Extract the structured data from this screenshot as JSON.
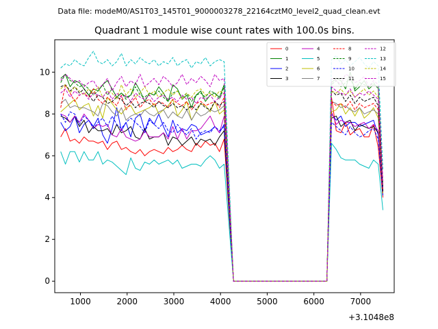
{
  "header": {
    "suptitle": "Data file: modeM0/AS1T03_145T01_9000003278_22164cztM0_level2_quad_clean.evt",
    "title": "Quadrant 1 module wise count rates with 100.0s bins."
  },
  "chart_data": {
    "type": "line",
    "title": "Quadrant 1 module wise count rates with 100.0s bins.",
    "xlabel": "",
    "ylabel": "",
    "x_offset_label": "+3.1048e8",
    "xlim": [
      450,
      7720
    ],
    "ylim": [
      -0.55,
      11.55
    ],
    "xticks": [
      1000,
      2000,
      3000,
      4000,
      5000,
      6000,
      7000
    ],
    "yticks": [
      0,
      2,
      4,
      6,
      8,
      10
    ],
    "grid": false,
    "legend_position": "top-right",
    "legend_columns": 4,
    "x": [
      578,
      678,
      778,
      878,
      978,
      1078,
      1178,
      1278,
      1378,
      1478,
      1578,
      1678,
      1778,
      1878,
      1978,
      2078,
      2178,
      2278,
      2378,
      2478,
      2578,
      2678,
      2778,
      2878,
      2978,
      3078,
      3178,
      3278,
      3378,
      3478,
      3578,
      3678,
      3778,
      3878,
      3978,
      4078,
      4178,
      4278,
      4378,
      6178,
      6278,
      6378,
      6478,
      6578,
      6678,
      6778,
      6878,
      6978,
      7078,
      7178,
      7278,
      7378,
      7478
    ],
    "series": [
      {
        "name": "0",
        "color": "#ff0000",
        "dash": "solid",
        "values": [
          6.9,
          7.3,
          6.7,
          6.8,
          6.6,
          6.9,
          6.7,
          6.7,
          6.6,
          6.7,
          6.3,
          6.6,
          6.7,
          6.3,
          6.4,
          6.2,
          6.1,
          6.3,
          6.0,
          6.2,
          6.3,
          6.2,
          6.1,
          6.4,
          6.2,
          6.3,
          6.5,
          6.3,
          6.2,
          6.6,
          6.4,
          6.7,
          6.5,
          6.6,
          6.2,
          6.8,
          3.4,
          0,
          0,
          0,
          0,
          8.8,
          7.2,
          7.1,
          7.6,
          7.0,
          7.2,
          7.3,
          6.9,
          6.9,
          7.5,
          6.4,
          4.0
        ]
      },
      {
        "name": "1",
        "color": "#008000",
        "dash": "solid",
        "values": [
          9.7,
          9.9,
          9.3,
          9.6,
          9.5,
          9.2,
          8.9,
          9.2,
          9.1,
          9.4,
          9.6,
          9.2,
          8.8,
          9.0,
          8.8,
          8.9,
          9.5,
          9.1,
          8.6,
          9.0,
          8.9,
          9.3,
          9.0,
          8.6,
          9.4,
          9.2,
          8.7,
          8.9,
          8.3,
          8.9,
          9.1,
          8.6,
          8.9,
          9.0,
          8.8,
          9.4,
          4.7,
          0,
          0,
          0,
          0,
          9.5,
          9.7,
          9.6,
          9.2,
          10.0,
          9.1,
          9.3,
          9.6,
          9.2,
          9.4,
          9.3,
          4.5
        ]
      },
      {
        "name": "2",
        "color": "#0000ff",
        "dash": "solid",
        "values": [
          7.6,
          7.2,
          7.4,
          7.9,
          7.1,
          7.5,
          7.7,
          7.4,
          7.8,
          7.0,
          6.6,
          7.3,
          8.3,
          7.2,
          7.6,
          6.9,
          7.8,
          8.0,
          7.2,
          7.8,
          7.5,
          8.0,
          7.4,
          6.9,
          7.7,
          7.1,
          7.3,
          7.2,
          7.5,
          7.4,
          7.0,
          7.1,
          7.2,
          7.4,
          7.1,
          7.5,
          3.8,
          0,
          0,
          0,
          0,
          8.0,
          7.7,
          7.9,
          7.4,
          7.6,
          7.6,
          7.4,
          7.5,
          7.6,
          7.7,
          7.0,
          4.3
        ]
      },
      {
        "name": "3",
        "color": "#000000",
        "dash": "solid",
        "values": [
          7.9,
          7.8,
          7.6,
          7.9,
          7.4,
          7.7,
          7.1,
          7.4,
          7.2,
          7.2,
          7.3,
          7.0,
          7.5,
          7.1,
          7.2,
          7.4,
          6.9,
          6.8,
          7.3,
          6.8,
          6.9,
          6.9,
          7.1,
          6.5,
          6.9,
          6.8,
          6.5,
          6.7,
          6.9,
          6.5,
          6.8,
          6.7,
          6.8,
          6.5,
          6.9,
          7.2,
          3.6,
          0,
          0,
          0,
          0,
          7.8,
          7.9,
          7.4,
          7.6,
          7.7,
          7.2,
          7.5,
          7.4,
          7.3,
          7.4,
          7.1,
          4.2
        ]
      },
      {
        "name": "4",
        "color": "#bf00bf",
        "dash": "solid",
        "values": [
          8.0,
          7.9,
          7.6,
          7.9,
          7.6,
          8.0,
          7.7,
          7.3,
          7.5,
          7.4,
          7.5,
          7.0,
          6.9,
          7.3,
          6.9,
          6.8,
          6.7,
          6.8,
          7.2,
          6.9,
          6.9,
          6.9,
          7.1,
          6.8,
          7.4,
          6.8,
          7.3,
          6.8,
          7.2,
          7.2,
          7.3,
          7.6,
          7.9,
          7.4,
          7.1,
          7.9,
          4.0,
          0,
          0,
          0,
          0,
          8.1,
          7.5,
          7.7,
          7.6,
          7.6,
          7.4,
          7.5,
          7.6,
          7.3,
          7.5,
          7.2,
          4.3
        ]
      },
      {
        "name": "5",
        "color": "#00bfbf",
        "dash": "solid",
        "values": [
          6.2,
          5.6,
          6.2,
          6.2,
          5.7,
          6.2,
          5.8,
          5.8,
          6.2,
          5.6,
          5.8,
          5.7,
          5.5,
          5.3,
          5.1,
          5.9,
          5.4,
          5.3,
          5.7,
          5.6,
          5.8,
          5.6,
          5.7,
          5.8,
          5.6,
          5.8,
          5.4,
          5.5,
          5.6,
          5.6,
          5.5,
          5.8,
          6.0,
          5.8,
          5.4,
          5.6,
          2.8,
          0,
          0,
          0,
          0,
          6.6,
          6.3,
          5.9,
          5.8,
          5.8,
          5.8,
          5.6,
          5.5,
          5.4,
          5.8,
          5.6,
          3.4
        ]
      },
      {
        "name": "6",
        "color": "#bfbf00",
        "dash": "solid",
        "values": [
          8.1,
          8.3,
          8.5,
          8.7,
          8.2,
          8.4,
          8.5,
          7.9,
          8.4,
          7.8,
          8.8,
          8.5,
          8.2,
          8.0,
          8.3,
          8.4,
          8.0,
          8.1,
          8.2,
          8.3,
          8.5,
          8.0,
          8.2,
          8.4,
          8.7,
          7.9,
          8.2,
          8.6,
          7.7,
          8.1,
          8.5,
          8.4,
          8.1,
          8.6,
          8.0,
          8.2,
          4.1,
          0,
          0,
          0,
          0,
          8.1,
          8.2,
          8.5,
          8.0,
          8.3,
          7.9,
          8.3,
          7.8,
          8.0,
          8.3,
          7.8,
          4.2
        ]
      },
      {
        "name": "7",
        "color": "#808080",
        "dash": "solid",
        "values": [
          8.5,
          8.7,
          8.3,
          8.4,
          8.3,
          8.3,
          8.2,
          8.1,
          7.9,
          8.5,
          8.4,
          8.1,
          7.9,
          8.3,
          7.7,
          7.9,
          8.0,
          7.9,
          8.2,
          8.0,
          7.9,
          8.1,
          8.2,
          7.8,
          8.1,
          7.9,
          7.8,
          8.2,
          7.7,
          8.1,
          7.9,
          8.0,
          8.2,
          8.1,
          8.2,
          8.4,
          4.2,
          0,
          0,
          0,
          0,
          8.6,
          8.5,
          8.3,
          8.4,
          8.2,
          8.1,
          8.3,
          8.0,
          8.1,
          8.2,
          8.0,
          4.3
        ]
      },
      {
        "name": "8",
        "color": "#ff0000",
        "dash": "dashed",
        "values": [
          8.3,
          9.4,
          9.0,
          8.6,
          8.9,
          9.0,
          8.8,
          9.2,
          8.7,
          8.5,
          8.8,
          8.6,
          8.4,
          8.9,
          8.2,
          8.5,
          8.8,
          8.3,
          8.6,
          8.7,
          8.4,
          8.6,
          8.5,
          8.3,
          8.7,
          8.5,
          8.4,
          8.6,
          8.2,
          8.5,
          8.6,
          8.4,
          8.5,
          8.6,
          8.3,
          8.8,
          4.4,
          0,
          0,
          0,
          0,
          8.6,
          8.4,
          8.5,
          8.3,
          8.6,
          8.2,
          8.5,
          8.3,
          8.4,
          8.5,
          8.2,
          4.3
        ]
      },
      {
        "name": "9",
        "color": "#008000",
        "dash": "dashed",
        "values": [
          9.5,
          9.9,
          9.6,
          9.5,
          9.3,
          9.4,
          9.2,
          8.9,
          9.1,
          9.4,
          8.9,
          9.2,
          8.8,
          9.0,
          8.7,
          8.9,
          9.3,
          8.9,
          8.8,
          9.0,
          8.9,
          9.1,
          8.8,
          8.6,
          9.0,
          9.1,
          8.8,
          9.0,
          8.6,
          8.9,
          9.0,
          8.8,
          9.1,
          9.0,
          8.7,
          9.3,
          4.6,
          0,
          0,
          0,
          0,
          9.4,
          9.6,
          9.3,
          9.5,
          9.7,
          9.2,
          9.5,
          9.4,
          9.3,
          9.5,
          9.2,
          4.6
        ]
      },
      {
        "name": "10",
        "color": "#0000ff",
        "dash": "dashed",
        "values": [
          8.0,
          7.6,
          8.1,
          8.0,
          7.5,
          7.9,
          7.7,
          7.3,
          7.6,
          7.8,
          7.4,
          7.9,
          7.5,
          7.3,
          7.6,
          7.8,
          7.6,
          7.4,
          7.1,
          7.7,
          7.5,
          7.3,
          7.6,
          7.2,
          7.1,
          7.5,
          7.2,
          7.0,
          7.3,
          6.8,
          7.1,
          7.2,
          7.1,
          7.4,
          7.2,
          7.4,
          3.7,
          0,
          0,
          0,
          0,
          7.6,
          7.4,
          7.2,
          7.0,
          7.4,
          7.1,
          6.9,
          7.0,
          7.2,
          7.3,
          6.8,
          4.1
        ]
      },
      {
        "name": "11",
        "color": "#000000",
        "dash": "dashed",
        "values": [
          9.3,
          9.4,
          9.1,
          9.3,
          9.0,
          9.2,
          8.9,
          8.6,
          8.9,
          8.8,
          8.5,
          8.6,
          8.8,
          8.7,
          8.4,
          8.6,
          8.3,
          8.5,
          8.6,
          8.5,
          8.3,
          8.6,
          8.4,
          8.3,
          8.5,
          8.3,
          8.4,
          8.2,
          8.4,
          8.2,
          8.5,
          8.3,
          8.2,
          8.6,
          8.4,
          8.6,
          4.3,
          0,
          0,
          0,
          0,
          9.1,
          8.9,
          9.0,
          8.6,
          8.9,
          8.5,
          8.8,
          8.6,
          8.7,
          8.8,
          8.4,
          4.3
        ]
      },
      {
        "name": "12",
        "color": "#bf00bf",
        "dash": "dashed",
        "values": [
          9.6,
          9.9,
          9.7,
          9.5,
          9.6,
          9.3,
          9.5,
          9.6,
          9.2,
          9.4,
          9.7,
          9.1,
          9.5,
          9.8,
          9.3,
          9.6,
          9.4,
          9.9,
          9.3,
          9.5,
          9.7,
          9.4,
          9.8,
          9.6,
          9.3,
          9.5,
          9.9,
          9.4,
          9.7,
          9.5,
          9.8,
          9.6,
          9.3,
          9.9,
          9.6,
          9.7,
          4.8,
          0,
          0,
          0,
          0,
          9.7,
          9.6,
          9.4,
          9.9,
          9.8,
          9.5,
          9.6,
          9.8,
          9.3,
          9.6,
          9.4,
          4.8
        ]
      },
      {
        "name": "13",
        "color": "#00bfbf",
        "dash": "dashed",
        "values": [
          10.2,
          10.4,
          10.3,
          10.6,
          10.4,
          10.3,
          10.7,
          11.0,
          10.5,
          10.4,
          10.6,
          10.3,
          10.5,
          10.9,
          10.3,
          10.6,
          10.4,
          10.7,
          10.5,
          10.4,
          10.6,
          10.3,
          10.5,
          10.4,
          10.7,
          10.3,
          10.5,
          10.6,
          10.2,
          10.5,
          10.4,
          10.7,
          10.3,
          10.5,
          10.6,
          10.5,
          5.2,
          0,
          0,
          0,
          0,
          10.6,
          10.8,
          10.4,
          10.6,
          10.3,
          10.5,
          10.7,
          10.4,
          10.2,
          10.5,
          10.3,
          5.3
        ]
      },
      {
        "name": "14",
        "color": "#bfbf00",
        "dash": "dashed",
        "values": [
          9.2,
          9.4,
          9.0,
          9.3,
          9.1,
          8.9,
          9.2,
          9.0,
          9.3,
          8.8,
          9.1,
          9.0,
          8.7,
          9.4,
          8.9,
          9.2,
          8.8,
          9.0,
          9.3,
          8.9,
          9.1,
          8.8,
          9.0,
          9.2,
          8.9,
          9.1,
          8.7,
          9.0,
          8.8,
          9.1,
          9.2,
          8.9,
          9.0,
          8.8,
          9.1,
          9.0,
          4.5,
          0,
          0,
          0,
          0,
          9.1,
          9.0,
          9.2,
          8.9,
          9.1,
          8.8,
          9.0,
          9.2,
          8.9,
          9.1,
          8.8,
          4.6
        ]
      },
      {
        "name": "15",
        "color": "#bf00bf",
        "dash": "dashed",
        "values": [
          9.0,
          9.2,
          8.8,
          9.1,
          8.9,
          9.0,
          8.7,
          9.0,
          8.9,
          8.8,
          9.1,
          8.7,
          9.0,
          8.8,
          8.9,
          8.6,
          9.0,
          8.8,
          8.7,
          8.9,
          8.6,
          8.8,
          8.9,
          8.7,
          8.8,
          8.6,
          8.9,
          8.7,
          8.8,
          8.5,
          8.8,
          8.7,
          8.9,
          8.6,
          8.8,
          9.0,
          4.5,
          0,
          0,
          0,
          0,
          9.3,
          9.1,
          9.0,
          8.9,
          9.2,
          8.8,
          9.0,
          8.9,
          9.1,
          8.9,
          8.7,
          4.5
        ]
      }
    ]
  }
}
